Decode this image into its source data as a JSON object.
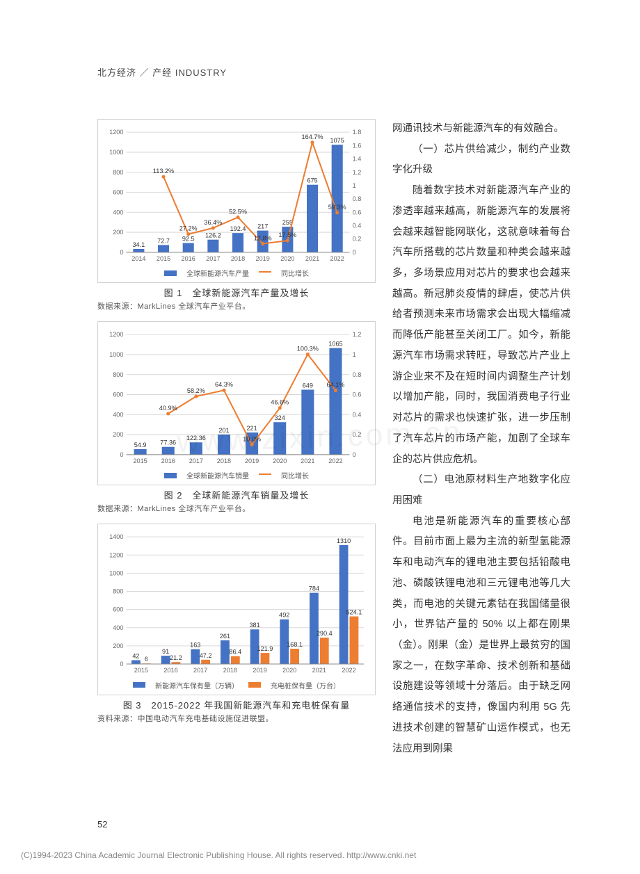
{
  "header": "北方经济 ／ 产经 INDUSTRY",
  "page_number": "52",
  "footer": "(C)1994-2023 China Academic Journal Electronic Publishing House. All rights reserved.    http://www.cnki.net",
  "watermark": "www.zixin.com.cn",
  "chart1": {
    "type": "bar+line",
    "title": "图 1　全球新能源汽车产量及增长",
    "source": "数据来源：MarkLines 全球汽车产业平台。",
    "categories": [
      "2014",
      "2015",
      "2016",
      "2017",
      "2018",
      "2019",
      "2020",
      "2021",
      "2022"
    ],
    "bar_values": [
      34.1,
      72.7,
      92.5,
      126.2,
      192.4,
      217,
      255,
      675,
      1075
    ],
    "bar_labels": [
      "34.1",
      "72.7",
      "92.5",
      "126.2",
      "192.4",
      "217",
      "255",
      "675",
      "1075"
    ],
    "line_values": [
      null,
      113.2,
      27.2,
      36.4,
      52.5,
      12.8,
      17.5,
      164.7,
      59.3
    ],
    "line_labels": [
      "",
      "113.2%",
      "27.2%",
      "36.4%",
      "52.5%",
      "12.8%",
      "17.5%",
      "164.7%",
      "59.3%"
    ],
    "y_left": {
      "min": 0,
      "max": 1200,
      "step": 200
    },
    "y_right": {
      "min": 0,
      "max": 1.8,
      "step": 0.2
    },
    "bar_color": "#4472c4",
    "line_color": "#ed7d31",
    "grid_color": "#d9d9d9",
    "axis_color": "#888888",
    "label_fontsize": 9,
    "tick_fontsize": 9,
    "legend": {
      "bar": "全球新能源汽车产量",
      "line": "同比增长"
    }
  },
  "chart2": {
    "type": "bar+line",
    "title": "图 2　全球新能源汽车销量及增长",
    "source": "数据来源：MarkLines 全球汽车产业平台。",
    "categories": [
      "2015",
      "2016",
      "2017",
      "2018",
      "2019",
      "2020",
      "2021",
      "2022"
    ],
    "bar_values": [
      54.9,
      77.36,
      122.36,
      201,
      221,
      324,
      649,
      1065
    ],
    "bar_labels": [
      "54.9",
      "77.36",
      "122.36",
      "201",
      "221",
      "324",
      "649",
      "1065"
    ],
    "line_values": [
      null,
      40.9,
      58.2,
      64.3,
      10.0,
      46.6,
      100.3,
      64.1
    ],
    "line_labels": [
      "",
      "40.9%",
      "58.2%",
      "64.3%",
      "10.0%",
      "46.6%",
      "100.3%",
      "64.1%"
    ],
    "y_left": {
      "min": 0,
      "max": 1200,
      "step": 200
    },
    "y_right": {
      "min": 0,
      "max": 1.2,
      "step": 0.2
    },
    "bar_color": "#4472c4",
    "line_color": "#ed7d31",
    "grid_color": "#d9d9d9",
    "axis_color": "#888888",
    "label_fontsize": 9,
    "tick_fontsize": 9,
    "legend": {
      "bar": "全球新能源汽车销量",
      "line": "同比增长"
    }
  },
  "chart3": {
    "type": "grouped-bar",
    "title": "图 3　2015-2022 年我国新能源汽车和充电桩保有量",
    "source": "资料来源：中国电动汽车充电基础设施促进联盟。",
    "categories": [
      "2015",
      "2016",
      "2017",
      "2018",
      "2019",
      "2020",
      "2021",
      "2022"
    ],
    "series_a": {
      "name": "新能源汽车保有量（万辆）",
      "values": [
        42,
        91,
        163,
        261,
        381,
        492,
        784,
        1310
      ],
      "labels": [
        "42",
        "91",
        "163",
        "261",
        "381",
        "492",
        "784",
        "1310"
      ],
      "color": "#4472c4"
    },
    "series_b": {
      "name": "充电桩保有量（万台）",
      "values": [
        6,
        21.2,
        47.2,
        86.4,
        121.9,
        168.1,
        290.4,
        524.1
      ],
      "labels": [
        "6",
        "21.2",
        "47.2",
        "86.4",
        "121.9",
        "168.1",
        "290.4",
        "524.1"
      ],
      "color": "#ed7d31"
    },
    "y_left": {
      "min": 0,
      "max": 1400,
      "step": 200
    },
    "grid_color": "#d9d9d9",
    "axis_color": "#888888",
    "label_fontsize": 9,
    "tick_fontsize": 9
  },
  "body_text": {
    "p0": "网通讯技术与新能源汽车的有效融合。",
    "h1": "（一）芯片供给减少，制约产业数字化升级",
    "p1": "随着数字技术对新能源汽车产业的渗透率越来越高，新能源汽车的发展将会越来越智能网联化，这就意味着每台汽车所搭载的芯片数量和种类会越来越多，多场景应用对芯片的要求也会越来越高。新冠肺炎疫情的肆虐，使芯片供给者预测未来市场需求会出现大幅缩减而降低产能甚至关闭工厂。如今，新能源汽车市场需求转旺，导致芯片产业上游企业来不及在短时间内调整生产计划以增加产能，同时，我国消费电子行业对芯片的需求也快速扩张，进一步压制了汽车芯片的市场产能，加剧了全球车企的芯片供应危机。",
    "h2": "（二）电池原材料生产地数字化应用困难",
    "p2": "电池是新能源汽车的重要核心部件。目前市面上最为主流的新型氢能源车和电动汽车的锂电池主要包括铅酸电池、磷酸铁锂电池和三元锂电池等几大类，而电池的关键元素钴在我国储量很小，世界钴产量的 50% 以上都在刚果（金）。刚果（金）是世界上最贫穷的国家之一，在数字革命、技术创新和基础设施建设等领域十分落后。由于缺乏网络通信技术的支持，像国内利用 5G 先进技术创建的智慧矿山运作模式，也无法应用到刚果"
  }
}
